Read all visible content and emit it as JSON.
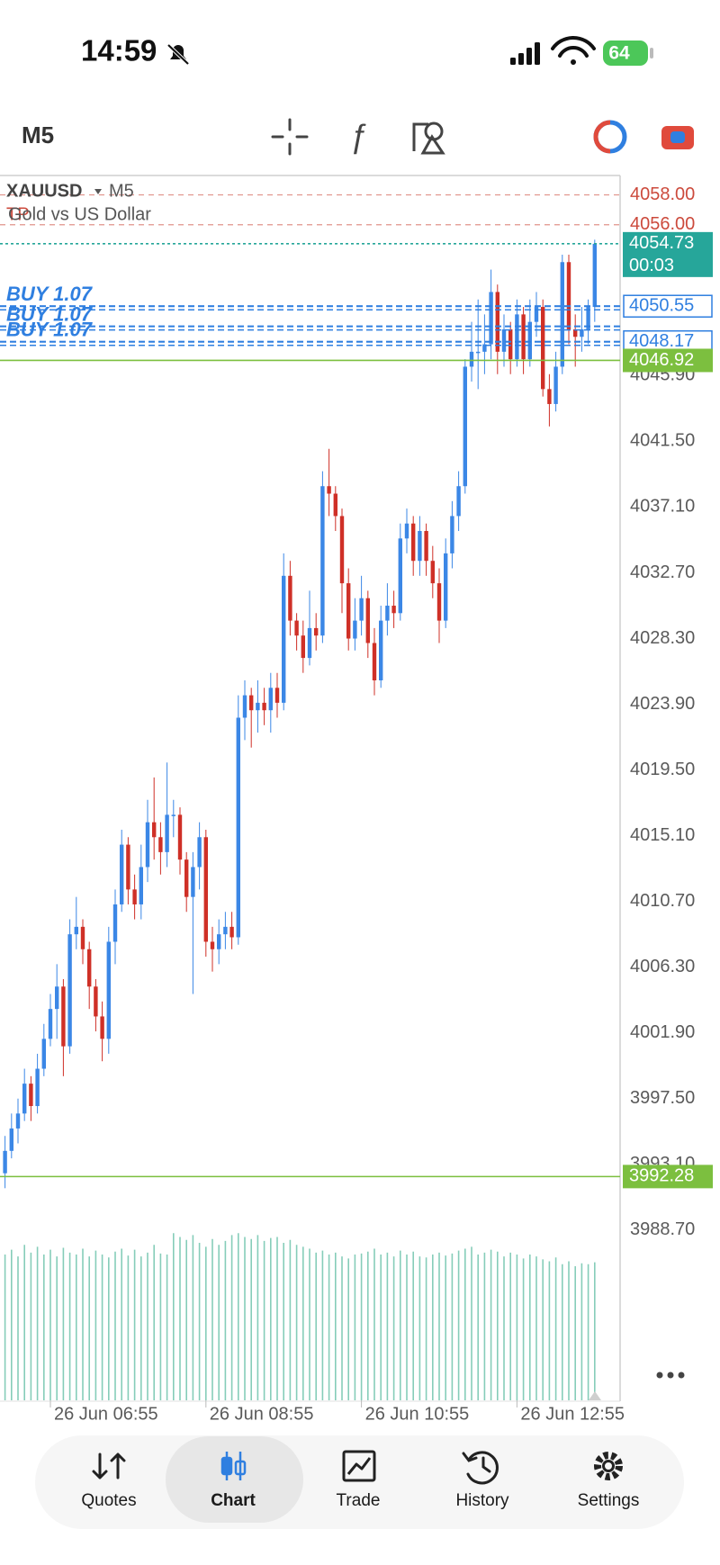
{
  "status_bar": {
    "time": "14:59",
    "battery": "64"
  },
  "toolbar": {
    "timeframe": "M5"
  },
  "chart_data": {
    "type": "candlestick",
    "symbol": "XAUUSD",
    "timeframe": "M5",
    "description": "Gold vs US Dollar",
    "tp_label": "TP",
    "up_color": "#3b87e6",
    "down_color": "#cf3027",
    "volume_color": "#86cdb9",
    "ylim": [
      3977.3,
      4059.3
    ],
    "yticks": [
      {
        "value": 4045.9,
        "label": "4045.90"
      },
      {
        "value": 4041.5,
        "label": "4041.50"
      },
      {
        "value": 4037.1,
        "label": "4037.10"
      },
      {
        "value": 4032.7,
        "label": "4032.70"
      },
      {
        "value": 4028.3,
        "label": "4028.30"
      },
      {
        "value": 4023.9,
        "label": "4023.90"
      },
      {
        "value": 4019.5,
        "label": "4019.50"
      },
      {
        "value": 4015.1,
        "label": "4015.10"
      },
      {
        "value": 4010.7,
        "label": "4010.70"
      },
      {
        "value": 4006.3,
        "label": "4006.30"
      },
      {
        "value": 4001.9,
        "label": "4001.90"
      },
      {
        "value": 3997.5,
        "label": "3997.50"
      },
      {
        "value": 3993.1,
        "label": "3993.10"
      },
      {
        "value": 3988.7,
        "label": "3988.70"
      }
    ],
    "categories": [
      null,
      null,
      null,
      null,
      null,
      null,
      null,
      "26 Jun 06:55",
      null,
      null,
      null,
      null,
      null,
      null,
      null,
      null,
      null,
      null,
      null,
      null,
      null,
      null,
      null,
      null,
      null,
      null,
      null,
      null,
      null,
      null,
      null,
      "26 Jun 08:55",
      null,
      null,
      null,
      null,
      null,
      null,
      null,
      null,
      null,
      null,
      null,
      null,
      null,
      null,
      null,
      null,
      null,
      null,
      null,
      null,
      null,
      null,
      null,
      "26 Jun 10:55",
      null,
      null,
      null,
      null,
      null,
      null,
      null,
      null,
      null,
      null,
      null,
      null,
      null,
      null,
      null,
      null,
      null,
      null,
      null,
      null,
      null,
      null,
      null,
      "26 Jun 12:55",
      null,
      null,
      null,
      null,
      null,
      null,
      null,
      null,
      null,
      null,
      null,
      null
    ],
    "open": [
      3992.5,
      3994,
      3995.5,
      3996.5,
      3998.5,
      3997,
      3999.5,
      4001.5,
      4003.5,
      4005,
      4001,
      4008.5,
      4009,
      4007.5,
      4005,
      4003,
      4001.5,
      4008,
      4010.5,
      4014.5,
      4011.5,
      4010.5,
      4013,
      4016,
      4015,
      4014,
      4016.5,
      4016.5,
      4013.5,
      4011,
      4013,
      4015,
      4008,
      4007.5,
      4008.5,
      4009,
      4008.3,
      4023,
      4024.5,
      4023.5,
      4024,
      4023.5,
      4025,
      4024,
      4032.5,
      4029.5,
      4028.5,
      4027,
      4029,
      4028.5,
      4038.5,
      4038,
      4036.5,
      4032,
      4028.3,
      4029.5,
      4031,
      4028,
      4025.5,
      4029.5,
      4030.5,
      4030,
      4035,
      4036,
      4033.5,
      4035.5,
      4033.5,
      4032,
      4029.5,
      4034,
      4036.5,
      4038.5,
      4046.5,
      4047.5,
      4047.5,
      4048,
      4051.5,
      4047.5,
      4049,
      4047,
      4050,
      4047,
      4049.5,
      4050.5,
      4045,
      4044,
      4046.5,
      4053.5,
      4049,
      4048.5,
      4049,
      4050.5
    ],
    "high": [
      3995,
      3996.5,
      3997.5,
      3999.5,
      3999,
      4000.5,
      4002.5,
      4004.5,
      4006.5,
      4005.5,
      4009.5,
      4011,
      4009.5,
      4008,
      4005.5,
      4004,
      4009,
      4011.5,
      4015.5,
      4015,
      4012.5,
      4014.5,
      4017.5,
      4019,
      4016,
      4020,
      4017.5,
      4017,
      4014,
      4014,
      4016,
      4015.5,
      4009,
      4009.5,
      4010,
      4010,
      4024.5,
      4025.5,
      4025,
      4025.5,
      4025,
      4026,
      4026,
      4034,
      4033.5,
      4030,
      4029.5,
      4031.5,
      4030,
      4039.5,
      4041,
      4038.5,
      4037,
      4033,
      4031,
      4032.5,
      4031.5,
      4029,
      4030.5,
      4032,
      4031.5,
      4036,
      4037,
      4036.5,
      4036.5,
      4036,
      4034.5,
      4033,
      4035,
      4037.5,
      4039.5,
      4047,
      4049.5,
      4051,
      4050,
      4053,
      4052,
      4050,
      4049.5,
      4051,
      4050.5,
      4051,
      4051.5,
      4051,
      4046,
      4047.5,
      4054,
      4054,
      4050,
      4050.5,
      4051,
      4055
    ],
    "low": [
      3991.5,
      3993.5,
      3994.5,
      3996,
      3996,
      3996.5,
      3999,
      4001,
      4001.5,
      3999,
      4000.5,
      4007.5,
      4006.5,
      4003.5,
      4002,
      4000,
      4000.5,
      4006.5,
      4010,
      4010.5,
      4009.5,
      4009.5,
      4012,
      4013.5,
      4012.5,
      4013,
      4015,
      4012.5,
      4010,
      4004.5,
      4011.5,
      4007,
      4006,
      4006.5,
      4007.5,
      4007.5,
      4007.8,
      4021.5,
      4021,
      4022,
      4022.5,
      4022,
      4023,
      4023.5,
      4028.5,
      4027.5,
      4026,
      4026.5,
      4027.5,
      4028,
      4036.5,
      4035.5,
      4030,
      4027.5,
      4027.5,
      4028.5,
      4027,
      4024.5,
      4025,
      4028.5,
      4029,
      4029.5,
      4034,
      4032.5,
      4032.5,
      4032.5,
      4031,
      4028,
      4029,
      4033,
      4035.5,
      4038,
      4045.5,
      4045,
      4046,
      4047,
      4046,
      4046.5,
      4046,
      4046.5,
      4046,
      4046.5,
      4048.5,
      4044.5,
      4042.5,
      4043.5,
      4046,
      4048,
      4046.5,
      4047.5,
      4048,
      4049.5
    ],
    "close": [
      3994,
      3995.5,
      3996.5,
      3998.5,
      3997,
      3999.5,
      4001.5,
      4003.5,
      4005,
      4001,
      4008.5,
      4009,
      4007.5,
      4005,
      4003,
      4001.5,
      4008,
      4010.5,
      4014.5,
      4011.5,
      4010.5,
      4013,
      4016,
      4015,
      4014,
      4016.5,
      4016.5,
      4013.5,
      4011,
      4013,
      4015,
      4008,
      4007.5,
      4008.5,
      4009,
      4008.3,
      4023,
      4024.5,
      4023.5,
      4024,
      4023.5,
      4025,
      4024,
      4032.5,
      4029.5,
      4028.5,
      4027,
      4029,
      4028.5,
      4038.5,
      4038,
      4036.5,
      4032,
      4028.3,
      4029.5,
      4031,
      4028,
      4025.5,
      4029.5,
      4030.5,
      4030,
      4035,
      4036,
      4033.5,
      4035.5,
      4033.5,
      4032,
      4029.5,
      4034,
      4036.5,
      4038.5,
      4046.5,
      4047.5,
      4047.5,
      4048,
      4051.5,
      4047.5,
      4049,
      4047,
      4050,
      4047,
      4049.5,
      4050.5,
      4045,
      4044,
      4046.5,
      4053.5,
      4049,
      4048.5,
      4049,
      4050.5,
      4054.73
    ],
    "volume": [
      150,
      155,
      148,
      160,
      152,
      158,
      150,
      155,
      148,
      157,
      152,
      150,
      156,
      148,
      154,
      150,
      147,
      153,
      156,
      149,
      155,
      148,
      152,
      160,
      151,
      150,
      172,
      168,
      165,
      170,
      162,
      158,
      166,
      160,
      164,
      170,
      172,
      168,
      166,
      170,
      164,
      167,
      168,
      162,
      165,
      160,
      158,
      156,
      152,
      154,
      150,
      152,
      148,
      146,
      150,
      151,
      153,
      156,
      150,
      152,
      148,
      154,
      150,
      153,
      148,
      147,
      150,
      152,
      149,
      151,
      154,
      156,
      158,
      150,
      152,
      155,
      153,
      148,
      152,
      150,
      146,
      150,
      148,
      145,
      143,
      147,
      140,
      143,
      138,
      141,
      140,
      142
    ],
    "orders": [
      {
        "label": "BUY 1.07",
        "price": 4050.55
      },
      {
        "label": "BUY 1.07",
        "price": 4049.2
      },
      {
        "label": "BUY 1.07",
        "price": 4048.17
      }
    ],
    "order_color": "#2f7fe0",
    "levels": [
      {
        "value": 4058,
        "label": "4058.00",
        "color": "#cc4a3c",
        "style": "text"
      },
      {
        "value": 4056,
        "label": "4056.00",
        "color": "#cc4a3c",
        "style": "text"
      },
      {
        "value": 4054.73,
        "label": "4054.73",
        "timer": "00:03",
        "color": "#26a69a",
        "style": "fill"
      },
      {
        "value": 4050.55,
        "label": "4050.55",
        "color": "#2f7fe0",
        "style": "outline"
      },
      {
        "value": 4048.17,
        "label": "4048.17",
        "color": "#2f7fe0",
        "style": "outline"
      },
      {
        "value": 4046.92,
        "label": "4046.92",
        "color": "#7cbf3f",
        "style": "fill"
      },
      {
        "value": 3992.28,
        "label": "3992.28",
        "color": "#7cbf3f",
        "style": "fill"
      }
    ]
  },
  "nav": {
    "tabs": [
      "Quotes",
      "Chart",
      "Trade",
      "History",
      "Settings"
    ],
    "active": 1
  }
}
